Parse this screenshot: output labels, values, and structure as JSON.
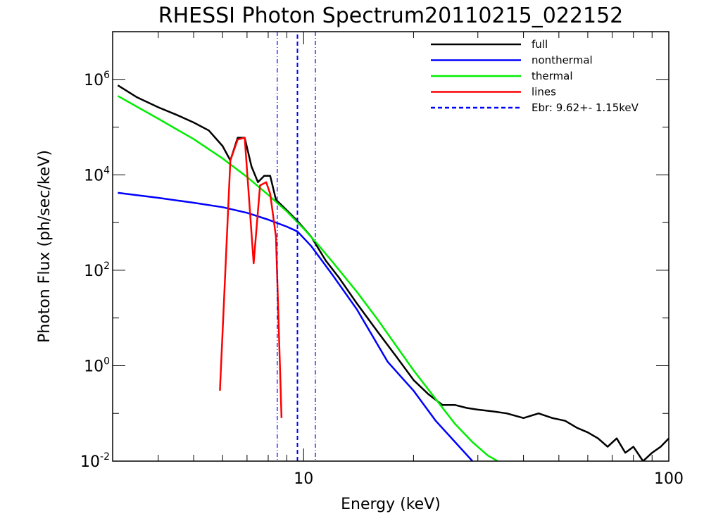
{
  "chart_data": {
    "type": "line",
    "title": "RHESSI Photon Spectrum20110215_022152",
    "xlabel": "Energy (keV)",
    "ylabel": "Photon Flux (ph/sec/keV)",
    "xscale": "log",
    "yscale": "log",
    "xlim": [
      3.0,
      100
    ],
    "ylim": [
      0.01,
      10000000
    ],
    "x_ticks": [
      {
        "value": 10,
        "label": "10"
      },
      {
        "value": 100,
        "label": "100"
      }
    ],
    "y_ticks": [
      {
        "value": 0.01,
        "base": "10",
        "exp": "-2"
      },
      {
        "value": 1,
        "base": "10",
        "exp": "0"
      },
      {
        "value": 100,
        "base": "10",
        "exp": "2"
      },
      {
        "value": 10000,
        "base": "10",
        "exp": "4"
      },
      {
        "value": 1000000,
        "base": "10",
        "exp": "6"
      }
    ],
    "legend_position": "top-right",
    "series": [
      {
        "name": "full",
        "color": "#000000",
        "style": "solid",
        "x": [
          3.1,
          3.5,
          4.0,
          4.5,
          5.0,
          5.5,
          6.0,
          6.3,
          6.6,
          6.9,
          7.2,
          7.5,
          7.8,
          8.1,
          8.4,
          9.0,
          9.6,
          10.5,
          11.5,
          12.5,
          14,
          16,
          18,
          20,
          22,
          24,
          26,
          28,
          30,
          33,
          36,
          40,
          44,
          48,
          52,
          56,
          60,
          64,
          68,
          72,
          76,
          80,
          85,
          90,
          95,
          100
        ],
        "y": [
          750000,
          420000,
          260000,
          180000,
          125000,
          85000,
          40000,
          20000,
          60000,
          60000,
          15000,
          7000,
          9500,
          9500,
          3000,
          1800,
          1100,
          500,
          160,
          70,
          20,
          5,
          1.5,
          0.5,
          0.25,
          0.15,
          0.15,
          0.13,
          0.12,
          0.11,
          0.1,
          0.08,
          0.1,
          0.08,
          0.07,
          0.05,
          0.04,
          0.03,
          0.02,
          0.03,
          0.015,
          0.02,
          0.01,
          0.015,
          0.02,
          0.03
        ]
      },
      {
        "name": "nonthermal",
        "color": "#0000ff",
        "style": "solid",
        "x": [
          3.1,
          4.0,
          5.0,
          6.0,
          7.0,
          8.0,
          9.0,
          9.62,
          10.5,
          12,
          14,
          17,
          20,
          23,
          26,
          29
        ],
        "y": [
          4200,
          3300,
          2600,
          2100,
          1600,
          1150,
          820,
          650,
          320,
          80,
          15,
          1.2,
          0.3,
          0.07,
          0.025,
          0.01
        ]
      },
      {
        "name": "thermal",
        "color": "#00ee00",
        "style": "solid",
        "x": [
          3.1,
          4.0,
          5.0,
          6.0,
          7.0,
          8.0,
          9.0,
          10,
          11,
          12,
          14,
          16,
          18,
          20,
          23,
          26,
          29,
          32,
          34
        ],
        "y": [
          450000,
          150000,
          56000,
          22000,
          9000,
          3800,
          1700,
          750,
          330,
          150,
          35,
          9,
          2.5,
          0.8,
          0.2,
          0.06,
          0.025,
          0.013,
          0.01
        ]
      },
      {
        "name": "lines",
        "color": "#ff0000",
        "style": "solid",
        "x": [
          5.9,
          6.3,
          6.6,
          6.9,
          7.3,
          7.6,
          7.9,
          8.1,
          8.4,
          8.7
        ],
        "y": [
          0.3,
          20000,
          55000,
          60000,
          140,
          6000,
          7000,
          4000,
          500,
          0.08
        ]
      },
      {
        "name": "Ebr:   9.62+-  1.15keV",
        "color": "#0000ff",
        "style": "dashed",
        "x": [
          9.62,
          9.62
        ],
        "y": [
          0.01,
          10000000
        ]
      }
    ],
    "uncertainty_lines": [
      {
        "x": 8.47,
        "color": "#0000ff",
        "style": "dash-dot"
      },
      {
        "x": 10.77,
        "color": "#0000ff",
        "style": "dash-dot"
      }
    ],
    "grid": false
  }
}
